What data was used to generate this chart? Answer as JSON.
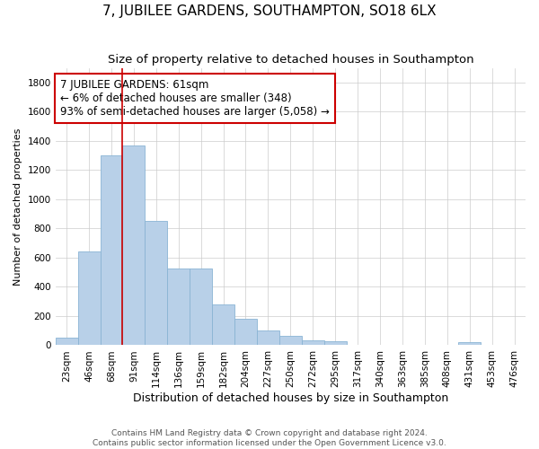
{
  "title": "7, JUBILEE GARDENS, SOUTHAMPTON, SO18 6LX",
  "subtitle": "Size of property relative to detached houses in Southampton",
  "xlabel": "Distribution of detached houses by size in Southampton",
  "ylabel": "Number of detached properties",
  "categories": [
    "23sqm",
    "46sqm",
    "68sqm",
    "91sqm",
    "114sqm",
    "136sqm",
    "159sqm",
    "182sqm",
    "204sqm",
    "227sqm",
    "250sqm",
    "272sqm",
    "295sqm",
    "317sqm",
    "340sqm",
    "363sqm",
    "385sqm",
    "408sqm",
    "431sqm",
    "453sqm",
    "476sqm"
  ],
  "values": [
    50,
    640,
    1300,
    1370,
    850,
    525,
    525,
    280,
    180,
    100,
    65,
    35,
    30,
    0,
    0,
    0,
    0,
    0,
    20,
    0,
    0
  ],
  "bar_color": "#b8d0e8",
  "bar_edge_color": "#8ab4d4",
  "vline_x": 2.5,
  "ylim": [
    0,
    1900
  ],
  "yticks": [
    0,
    200,
    400,
    600,
    800,
    1000,
    1200,
    1400,
    1600,
    1800
  ],
  "grid_color": "#cccccc",
  "background_color": "#ffffff",
  "annotation_box_text": "7 JUBILEE GARDENS: 61sqm\n← 6% of detached houses are smaller (348)\n93% of semi-detached houses are larger (5,058) →",
  "footnote": "Contains HM Land Registry data © Crown copyright and database right 2024.\nContains public sector information licensed under the Open Government Licence v3.0.",
  "title_fontsize": 11,
  "subtitle_fontsize": 9.5,
  "xlabel_fontsize": 9,
  "ylabel_fontsize": 8,
  "tick_fontsize": 7.5,
  "annotation_fontsize": 8.5,
  "footnote_fontsize": 6.5,
  "red_line_color": "#cc0000",
  "annotation_box_edge_color": "#cc0000"
}
